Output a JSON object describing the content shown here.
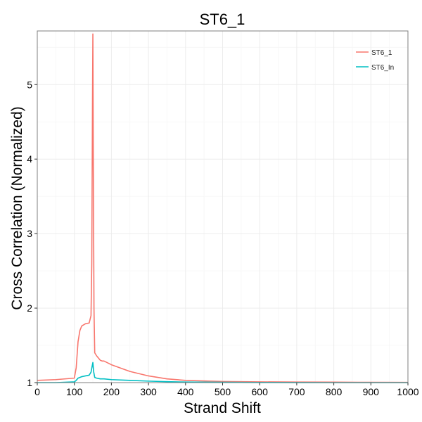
{
  "chart_data": {
    "type": "line",
    "title": "ST6_1",
    "xlabel": "Strand Shift",
    "ylabel": "Cross Correlation (Normalized)",
    "xlim": [
      0,
      1000
    ],
    "ylim": [
      1,
      5.72
    ],
    "xticks": [
      0,
      100,
      200,
      300,
      400,
      500,
      600,
      700,
      800,
      900,
      1000
    ],
    "yticks": [
      1,
      2,
      3,
      4,
      5
    ],
    "grid": true,
    "legend_position": "top-right",
    "series": [
      {
        "name": "ST6_1",
        "color": "#F8766D",
        "x": [
          0,
          50,
          100,
          105,
          110,
          115,
          120,
          130,
          140,
          145,
          147,
          149,
          150,
          151,
          153,
          155,
          160,
          170,
          175,
          180,
          200,
          250,
          300,
          350,
          400,
          500,
          600,
          700,
          800,
          900,
          1000
        ],
        "y": [
          1.03,
          1.04,
          1.06,
          1.2,
          1.55,
          1.7,
          1.76,
          1.79,
          1.8,
          1.9,
          2.6,
          4.8,
          5.68,
          4.2,
          2.0,
          1.4,
          1.36,
          1.3,
          1.29,
          1.29,
          1.24,
          1.15,
          1.09,
          1.05,
          1.03,
          1.015,
          1.01,
          1.008,
          1.006,
          1.004,
          1.003
        ]
      },
      {
        "name": "ST6_In",
        "color": "#00BFC4",
        "x": [
          0,
          50,
          100,
          105,
          110,
          115,
          120,
          130,
          140,
          145,
          148,
          150,
          152,
          155,
          160,
          170,
          180,
          200,
          250,
          300,
          350,
          400,
          500,
          600,
          700,
          800,
          900,
          1000
        ],
        "y": [
          1.0,
          1.0,
          1.01,
          1.03,
          1.06,
          1.07,
          1.08,
          1.09,
          1.1,
          1.14,
          1.22,
          1.27,
          1.15,
          1.07,
          1.06,
          1.05,
          1.05,
          1.04,
          1.03,
          1.02,
          1.012,
          1.008,
          1.004,
          1.002,
          1.001,
          1.0,
          1.0,
          1.0
        ]
      }
    ]
  }
}
